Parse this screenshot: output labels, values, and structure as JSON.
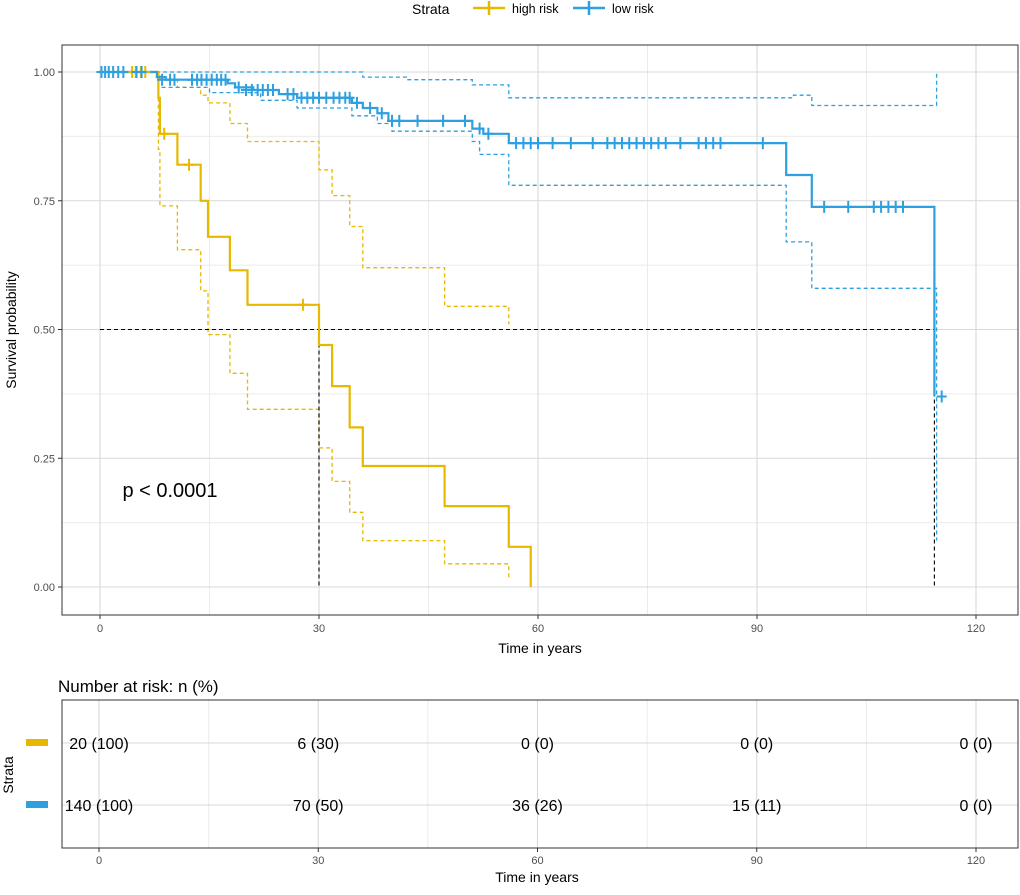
{
  "chart_data": [
    {
      "type": "line",
      "subtype": "kaplan-meier",
      "xlabel": "Time in years",
      "ylabel": "Survival probability",
      "xlim": [
        0,
        120
      ],
      "ylim": [
        0,
        1
      ],
      "xticks": [
        "0",
        "30",
        "60",
        "90",
        "120"
      ],
      "yticks": [
        "0.00",
        "0.25",
        "0.50",
        "0.75",
        "1.00"
      ],
      "grid": true,
      "legend": {
        "title": "Strata",
        "position": "top",
        "entries": [
          "high risk",
          "low risk"
        ]
      },
      "annotation": "p < 0.0001",
      "median_reference": {
        "y": 0.5,
        "x_values": [
          30,
          114.3
        ]
      },
      "series": [
        {
          "name": "high risk",
          "color": "#E7B800",
          "steps": [
            [
              0,
              1.0
            ],
            [
              8,
              0.95
            ],
            [
              8.2,
              0.88
            ],
            [
              10.6,
              0.82
            ],
            [
              13.8,
              0.75
            ],
            [
              14.8,
              0.68
            ],
            [
              17.8,
              0.615
            ],
            [
              20.2,
              0.548
            ],
            [
              30,
              0.47
            ],
            [
              31.8,
              0.39
            ],
            [
              34.2,
              0.31
            ],
            [
              36,
              0.235
            ],
            [
              47.2,
              0.157
            ],
            [
              56,
              0.078
            ],
            [
              59,
              0.0
            ]
          ],
          "upper": [
            [
              0,
              1.0
            ],
            [
              8,
              1.0
            ],
            [
              8.2,
              0.985
            ],
            [
              10.6,
              0.97
            ],
            [
              13.8,
              0.955
            ],
            [
              14.8,
              0.94
            ],
            [
              17.8,
              0.9
            ],
            [
              20.2,
              0.865
            ],
            [
              30,
              0.81
            ],
            [
              31.8,
              0.76
            ],
            [
              34.2,
              0.7
            ],
            [
              36,
              0.62
            ],
            [
              47.2,
              0.545
            ],
            [
              56,
              0.51
            ]
          ],
          "lower": [
            [
              0,
              1.0
            ],
            [
              8,
              0.85
            ],
            [
              8.2,
              0.74
            ],
            [
              10.6,
              0.655
            ],
            [
              13.8,
              0.575
            ],
            [
              14.8,
              0.49
            ],
            [
              17.8,
              0.415
            ],
            [
              20.2,
              0.345
            ],
            [
              30,
              0.27
            ],
            [
              31.8,
              0.205
            ],
            [
              34.2,
              0.145
            ],
            [
              36,
              0.09
            ],
            [
              47.2,
              0.045
            ],
            [
              56,
              0.015
            ]
          ],
          "censored": [
            [
              4.4,
              1.0
            ],
            [
              4.9,
              1.0
            ],
            [
              5.6,
              1.0
            ],
            [
              6.2,
              1.0
            ],
            [
              8.8,
              0.88
            ],
            [
              12.2,
              0.82
            ],
            [
              27.8,
              0.548
            ]
          ]
        },
        {
          "name": "low risk",
          "color": "#2E9FDF",
          "steps": [
            [
              0,
              1.0
            ],
            [
              7.8,
              0.99
            ],
            [
              9,
              0.985
            ],
            [
              17.5,
              0.978
            ],
            [
              18.5,
              0.97
            ],
            [
              21,
              0.965
            ],
            [
              24.5,
              0.957
            ],
            [
              27,
              0.95
            ],
            [
              34.5,
              0.94
            ],
            [
              36,
              0.93
            ],
            [
              38,
              0.92
            ],
            [
              39.5,
              0.905
            ],
            [
              51,
              0.89
            ],
            [
              52.5,
              0.88
            ],
            [
              56,
              0.862
            ],
            [
              94,
              0.8
            ],
            [
              97.5,
              0.738
            ],
            [
              114.3,
              0.37
            ]
          ],
          "upper": [
            [
              0,
              1.0
            ],
            [
              24,
              1.0
            ],
            [
              36,
              0.99
            ],
            [
              42,
              0.985
            ],
            [
              51,
              0.975
            ],
            [
              56,
              0.95
            ],
            [
              92,
              0.95
            ],
            [
              95,
              0.955
            ],
            [
              97.5,
              0.935
            ],
            [
              114.3,
              0.935
            ],
            [
              114.6,
              1.0
            ]
          ],
          "lower": [
            [
              0,
              1.0
            ],
            [
              8,
              0.97
            ],
            [
              15,
              0.96
            ],
            [
              22,
              0.945
            ],
            [
              27,
              0.93
            ],
            [
              34.5,
              0.915
            ],
            [
              38,
              0.9
            ],
            [
              40,
              0.885
            ],
            [
              51,
              0.865
            ],
            [
              52,
              0.84
            ],
            [
              56,
              0.78
            ],
            [
              92.5,
              0.78
            ],
            [
              94,
              0.67
            ],
            [
              97.5,
              0.58
            ],
            [
              114.3,
              0.58
            ],
            [
              114.6,
              0.09
            ]
          ],
          "censored": [
            [
              0.2,
              1.0
            ],
            [
              0.7,
              1.0
            ],
            [
              1.2,
              1.0
            ],
            [
              1.8,
              1.0
            ],
            [
              2.5,
              1.0
            ],
            [
              3.2,
              1.0
            ],
            [
              5.0,
              1.0
            ],
            [
              5.7,
              1.0
            ],
            [
              8.5,
              0.985
            ],
            [
              9.6,
              0.985
            ],
            [
              10.2,
              0.985
            ],
            [
              12.6,
              0.985
            ],
            [
              13.3,
              0.985
            ],
            [
              13.9,
              0.985
            ],
            [
              14.6,
              0.985
            ],
            [
              15.3,
              0.985
            ],
            [
              16.0,
              0.985
            ],
            [
              16.6,
              0.985
            ],
            [
              17.2,
              0.985
            ],
            [
              19.0,
              0.97
            ],
            [
              20.0,
              0.965
            ],
            [
              20.8,
              0.965
            ],
            [
              21.6,
              0.965
            ],
            [
              22.3,
              0.965
            ],
            [
              23.0,
              0.965
            ],
            [
              23.7,
              0.965
            ],
            [
              25.7,
              0.957
            ],
            [
              26.5,
              0.957
            ],
            [
              27.6,
              0.95
            ],
            [
              28.4,
              0.95
            ],
            [
              29.2,
              0.95
            ],
            [
              30.0,
              0.95
            ],
            [
              31.0,
              0.95
            ],
            [
              32.0,
              0.95
            ],
            [
              32.8,
              0.95
            ],
            [
              33.6,
              0.95
            ],
            [
              34.2,
              0.95
            ],
            [
              35.2,
              0.94
            ],
            [
              37.0,
              0.93
            ],
            [
              38.6,
              0.92
            ],
            [
              40.0,
              0.905
            ],
            [
              41.0,
              0.905
            ],
            [
              43.5,
              0.905
            ],
            [
              47.0,
              0.905
            ],
            [
              50.0,
              0.905
            ],
            [
              52.0,
              0.89
            ],
            [
              53.2,
              0.88
            ],
            [
              57.0,
              0.862
            ],
            [
              58.0,
              0.862
            ],
            [
              59.0,
              0.862
            ],
            [
              60.0,
              0.862
            ],
            [
              62.0,
              0.862
            ],
            [
              64.5,
              0.862
            ],
            [
              67.5,
              0.862
            ],
            [
              69.5,
              0.862
            ],
            [
              70.5,
              0.862
            ],
            [
              71.5,
              0.862
            ],
            [
              72.5,
              0.862
            ],
            [
              73.5,
              0.862
            ],
            [
              74.5,
              0.862
            ],
            [
              75.5,
              0.862
            ],
            [
              76.5,
              0.862
            ],
            [
              77.5,
              0.862
            ],
            [
              79.5,
              0.862
            ],
            [
              82.0,
              0.862
            ],
            [
              83.0,
              0.862
            ],
            [
              84.0,
              0.862
            ],
            [
              85.0,
              0.862
            ],
            [
              90.8,
              0.862
            ],
            [
              99.2,
              0.738
            ],
            [
              102.5,
              0.738
            ],
            [
              106.0,
              0.738
            ],
            [
              107.0,
              0.738
            ],
            [
              108.0,
              0.738
            ],
            [
              109.0,
              0.738
            ],
            [
              110.0,
              0.738
            ],
            [
              115.3,
              0.37
            ]
          ]
        }
      ]
    },
    {
      "type": "table",
      "title": "Number at risk: n (%)",
      "xlabel": "Time in years",
      "ylabel": "Strata",
      "xlim": [
        0,
        120
      ],
      "xticks": [
        "0",
        "30",
        "60",
        "90",
        "120"
      ],
      "time_points": [
        0,
        30,
        60,
        90,
        120
      ],
      "rows": [
        {
          "name": "high risk",
          "color": "#E7B800",
          "cells": [
            "20 (100)",
            "6 (30)",
            "0 (0)",
            "0 (0)",
            "0 (0)"
          ]
        },
        {
          "name": "low risk",
          "color": "#2E9FDF",
          "cells": [
            "140 (100)",
            "70 (50)",
            "36 (26)",
            "15 (11)",
            "0 (0)"
          ]
        }
      ]
    }
  ]
}
